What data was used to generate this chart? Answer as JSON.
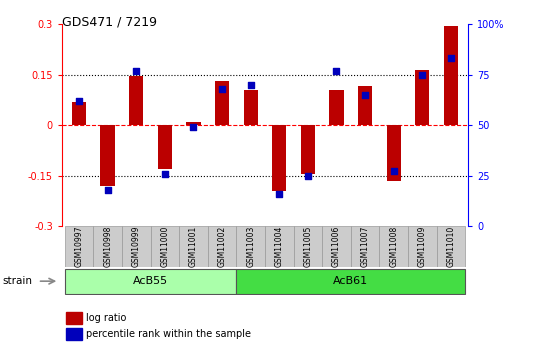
{
  "title": "GDS471 / 7219",
  "samples": [
    "GSM10997",
    "GSM10998",
    "GSM10999",
    "GSM11000",
    "GSM11001",
    "GSM11002",
    "GSM11003",
    "GSM11004",
    "GSM11005",
    "GSM11006",
    "GSM11007",
    "GSM11008",
    "GSM11009",
    "GSM11010"
  ],
  "log_ratio": [
    0.07,
    -0.18,
    0.145,
    -0.13,
    0.01,
    0.13,
    0.105,
    -0.195,
    -0.145,
    0.105,
    0.115,
    -0.165,
    0.165,
    0.295
  ],
  "percentile": [
    62,
    18,
    77,
    26,
    49,
    68,
    70,
    16,
    25,
    77,
    65,
    27,
    75,
    83
  ],
  "group_acb55": {
    "label": "AcB55",
    "start": 0,
    "end": 5,
    "color": "#aaffaa"
  },
  "group_acb61": {
    "label": "AcB61",
    "start": 6,
    "end": 13,
    "color": "#44dd44"
  },
  "ylim": [
    -0.3,
    0.3
  ],
  "y2lim": [
    0,
    100
  ],
  "hlines_dotted": [
    0.15,
    -0.15
  ],
  "hline_zero": 0.0,
  "bar_color": "#bb0000",
  "dot_color": "#0000bb",
  "background_color": "#ffffff",
  "sample_box_color": "#cccccc",
  "sample_box_edge": "#999999",
  "strain_label": "strain",
  "legend_items": [
    "log ratio",
    "percentile rank within the sample"
  ],
  "bar_width": 0.5,
  "dot_size": 18,
  "left_yticks": [
    -0.3,
    -0.15,
    0.0,
    0.15,
    0.3
  ],
  "left_yticklabels": [
    "-0.3",
    "-0.15",
    "0",
    "0.15",
    "0.3"
  ],
  "right_yticks": [
    0,
    25,
    50,
    75,
    100
  ],
  "right_yticklabels": [
    "0",
    "25",
    "50",
    "75",
    "100%"
  ]
}
